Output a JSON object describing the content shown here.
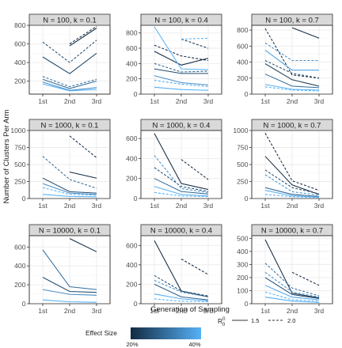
{
  "chart_data": {
    "type": "line",
    "layout": "facet-grid",
    "ylabel": "Number of Clusters Per Arm",
    "xlabel": "Generation of Sampling",
    "x": [
      "1st",
      "2nd",
      "3rd"
    ],
    "legend": {
      "effect_size": {
        "title": "Effect Size",
        "labels": [
          "20%",
          "40%"
        ],
        "color_low": "#132b43",
        "color_high": "#56b1f7"
      },
      "r0": {
        "title": "R",
        "sup": "0",
        "sub": "0",
        "entries": [
          {
            "label": "1.5",
            "linetype": "solid"
          },
          {
            "label": "2.0",
            "linetype": "dashed"
          }
        ]
      },
      "position": "bottom"
    },
    "panels": [
      {
        "title": "N = 100, k = 0.1",
        "ylim": [
          60,
          800
        ],
        "yticks": [
          200,
          400,
          600,
          800
        ],
        "series": [
          {
            "effect": 0.2,
            "linetype": "solid",
            "values": [
              null,
              580,
              770
            ]
          },
          {
            "effect": 0.2,
            "linetype": "dashed",
            "values": [
              null,
              600,
              790
            ]
          },
          {
            "effect": 0.25,
            "linetype": "solid",
            "values": [
              460,
              280,
              500
            ]
          },
          {
            "effect": 0.25,
            "linetype": "dashed",
            "values": [
              620,
              400,
              640
            ]
          },
          {
            "effect": 0.3,
            "linetype": "solid",
            "values": [
              220,
              120,
              200
            ]
          },
          {
            "effect": 0.3,
            "linetype": "dashed",
            "values": [
              250,
              140,
              220
            ]
          },
          {
            "effect": 0.35,
            "linetype": "solid",
            "values": [
              190,
              100,
              130
            ]
          },
          {
            "effect": 0.4,
            "linetype": "solid",
            "values": [
              170,
              95,
              110
            ]
          }
        ]
      },
      {
        "title": "N = 100, k = 0.4",
        "ylim": [
          0,
          900
        ],
        "yticks": [
          0,
          200,
          400,
          600,
          800
        ],
        "series": [
          {
            "effect": 0.2,
            "linetype": "solid",
            "values": [
              560,
              380,
              470
            ]
          },
          {
            "effect": 0.2,
            "linetype": "dashed",
            "values": [
              640,
              500,
              440
            ]
          },
          {
            "effect": 0.21,
            "linetype": "dashed",
            "values": [
              null,
              720,
              600
            ]
          },
          {
            "effect": 0.25,
            "linetype": "solid",
            "values": [
              330,
              270,
              270
            ]
          },
          {
            "effect": 0.28,
            "linetype": "dashed",
            "values": [
              400,
              290,
              300
            ]
          },
          {
            "effect": 0.35,
            "linetype": "solid",
            "values": [
              240,
              150,
              120
            ]
          },
          {
            "effect": 0.4,
            "linetype": "solid",
            "values": [
              880,
              330,
              320
            ]
          },
          {
            "effect": 0.4,
            "linetype": "dashed",
            "values": [
              null,
              720,
              730
            ]
          },
          {
            "effect": 0.38,
            "linetype": "dashed",
            "values": [
              180,
              130,
              100
            ]
          },
          {
            "effect": 0.4,
            "linetype": "solid",
            "values": [
              90,
              60,
              50
            ]
          }
        ]
      },
      {
        "title": "N = 100, k = 0.7",
        "ylim": [
          0,
          860
        ],
        "yticks": [
          0,
          200,
          400,
          600,
          800
        ],
        "series": [
          {
            "effect": 0.2,
            "linetype": "solid",
            "values": [
              null,
              830,
              700
            ]
          },
          {
            "effect": 0.2,
            "linetype": "dashed",
            "values": [
              820,
              240,
              200
            ]
          },
          {
            "effect": 0.22,
            "linetype": "solid",
            "values": [
              380,
              180,
              100
            ]
          },
          {
            "effect": 0.25,
            "linetype": "dashed",
            "values": [
              420,
              260,
              200
            ]
          },
          {
            "effect": 0.3,
            "linetype": "solid",
            "values": [
              250,
              100,
              80
            ]
          },
          {
            "effect": 0.35,
            "linetype": "dashed",
            "values": [
              640,
              420,
              420
            ]
          },
          {
            "effect": 0.38,
            "linetype": "solid",
            "values": [
              550,
              300,
              300
            ]
          },
          {
            "effect": 0.4,
            "linetype": "solid",
            "values": [
              120,
              60,
              50
            ]
          },
          {
            "effect": 0.4,
            "linetype": "dashed",
            "values": [
              90,
              50,
              40
            ]
          }
        ]
      },
      {
        "title": "N = 1000, k = 0.1",
        "ylim": [
          0,
          1000
        ],
        "yticks": [
          0,
          250,
          500,
          750,
          1000
        ],
        "series": [
          {
            "effect": 0.2,
            "linetype": "dashed",
            "values": [
              null,
              920,
              600
            ]
          },
          {
            "effect": 0.2,
            "linetype": "solid",
            "values": [
              null,
              390,
              300
            ]
          },
          {
            "effect": 0.25,
            "linetype": "solid",
            "values": [
              300,
              100,
              80
            ]
          },
          {
            "effect": 0.3,
            "linetype": "dashed",
            "values": [
              620,
              280,
              150
            ]
          },
          {
            "effect": 0.35,
            "linetype": "solid",
            "values": [
              220,
              80,
              60
            ]
          },
          {
            "effect": 0.4,
            "linetype": "dashed",
            "values": [
              160,
              60,
              50
            ]
          },
          {
            "effect": 0.4,
            "linetype": "solid",
            "values": [
              60,
              30,
              25
            ]
          }
        ]
      },
      {
        "title": "N = 1000, k = 0.4",
        "ylim": [
          0,
          680
        ],
        "yticks": [
          0,
          200,
          400,
          600
        ],
        "series": [
          {
            "effect": 0.2,
            "linetype": "solid",
            "values": [
              650,
              150,
              90
            ]
          },
          {
            "effect": 0.2,
            "linetype": "dashed",
            "values": [
              null,
              390,
              190
            ]
          },
          {
            "effect": 0.25,
            "linetype": "dashed",
            "values": [
              310,
              120,
              70
            ]
          },
          {
            "effect": 0.3,
            "linetype": "solid",
            "values": [
              200,
              70,
              45
            ]
          },
          {
            "effect": 0.35,
            "linetype": "dashed",
            "values": [
              430,
              100,
              60
            ]
          },
          {
            "effect": 0.4,
            "linetype": "solid",
            "values": [
              120,
              40,
              25
            ]
          },
          {
            "effect": 0.4,
            "linetype": "dashed",
            "values": [
              60,
              25,
              20
            ]
          }
        ]
      },
      {
        "title": "N = 1000, k = 0.7",
        "ylim": [
          0,
          1000
        ],
        "yticks": [
          0,
          250,
          500,
          750,
          1000
        ],
        "series": [
          {
            "effect": 0.2,
            "linetype": "dashed",
            "values": [
              960,
              260,
              120
            ]
          },
          {
            "effect": 0.2,
            "linetype": "solid",
            "values": [
              620,
              200,
              60
            ]
          },
          {
            "effect": 0.25,
            "linetype": "dashed",
            "values": [
              420,
              160,
              70
            ]
          },
          {
            "effect": 0.28,
            "linetype": "solid",
            "values": [
              160,
              60,
              30
            ]
          },
          {
            "effect": 0.35,
            "linetype": "dashed",
            "values": [
              350,
              100,
              50
            ]
          },
          {
            "effect": 0.4,
            "linetype": "solid",
            "values": [
              120,
              40,
              20
            ]
          },
          {
            "effect": 0.4,
            "linetype": "dashed",
            "values": [
              60,
              25,
              15
            ]
          }
        ]
      },
      {
        "title": "N = 10000, k = 0.1",
        "ylim": [
          0,
          720
        ],
        "yticks": [
          0,
          200,
          400,
          600
        ],
        "series": [
          {
            "effect": 0.2,
            "linetype": "solid",
            "values": [
              null,
              690,
              550
            ]
          },
          {
            "effect": 0.25,
            "linetype": "solid",
            "values": [
              280,
              130,
              120
            ]
          },
          {
            "effect": 0.3,
            "linetype": "solid",
            "values": [
              570,
              180,
              150
            ]
          },
          {
            "effect": 0.35,
            "linetype": "solid",
            "values": [
              150,
              100,
              90
            ]
          },
          {
            "effect": 0.4,
            "linetype": "solid",
            "values": [
              40,
              20,
              15
            ]
          }
        ]
      },
      {
        "title": "N = 10000, k = 0.4",
        "ylim": [
          0,
          700
        ],
        "yticks": [
          0,
          200,
          400,
          600
        ],
        "series": [
          {
            "effect": 0.2,
            "linetype": "solid",
            "values": [
              650,
              130,
              70
            ]
          },
          {
            "effect": 0.2,
            "linetype": "dashed",
            "values": [
              null,
              460,
              300
            ]
          },
          {
            "effect": 0.25,
            "linetype": "dashed",
            "values": [
              290,
              130,
              80
            ]
          },
          {
            "effect": 0.28,
            "linetype": "solid",
            "values": [
              200,
              70,
              40
            ]
          },
          {
            "effect": 0.35,
            "linetype": "dashed",
            "values": [
              240,
              120,
              70
            ]
          },
          {
            "effect": 0.4,
            "linetype": "solid",
            "values": [
              100,
              50,
              30
            ]
          },
          {
            "effect": 0.4,
            "linetype": "dashed",
            "values": [
              50,
              25,
              20
            ]
          }
        ]
      },
      {
        "title": "N = 10000, k = 0.7",
        "ylim": [
          0,
          520
        ],
        "yticks": [
          0,
          100,
          200,
          300,
          400,
          500
        ],
        "series": [
          {
            "effect": 0.2,
            "linetype": "solid",
            "values": [
              490,
              80,
              45
            ]
          },
          {
            "effect": 0.2,
            "linetype": "dashed",
            "values": [
              null,
              240,
              140
            ]
          },
          {
            "effect": 0.25,
            "linetype": "solid",
            "values": [
              200,
              70,
              40
            ]
          },
          {
            "effect": 0.3,
            "linetype": "dashed",
            "values": [
              310,
              120,
              60
            ]
          },
          {
            "effect": 0.35,
            "linetype": "dashed",
            "values": [
              240,
              90,
              50
            ]
          },
          {
            "effect": 0.38,
            "linetype": "solid",
            "values": [
              140,
              50,
              30
            ]
          },
          {
            "effect": 0.4,
            "linetype": "dashed",
            "values": [
              90,
              30,
              20
            ]
          },
          {
            "effect": 0.4,
            "linetype": "solid",
            "values": [
              50,
              20,
              10
            ]
          }
        ]
      }
    ]
  }
}
